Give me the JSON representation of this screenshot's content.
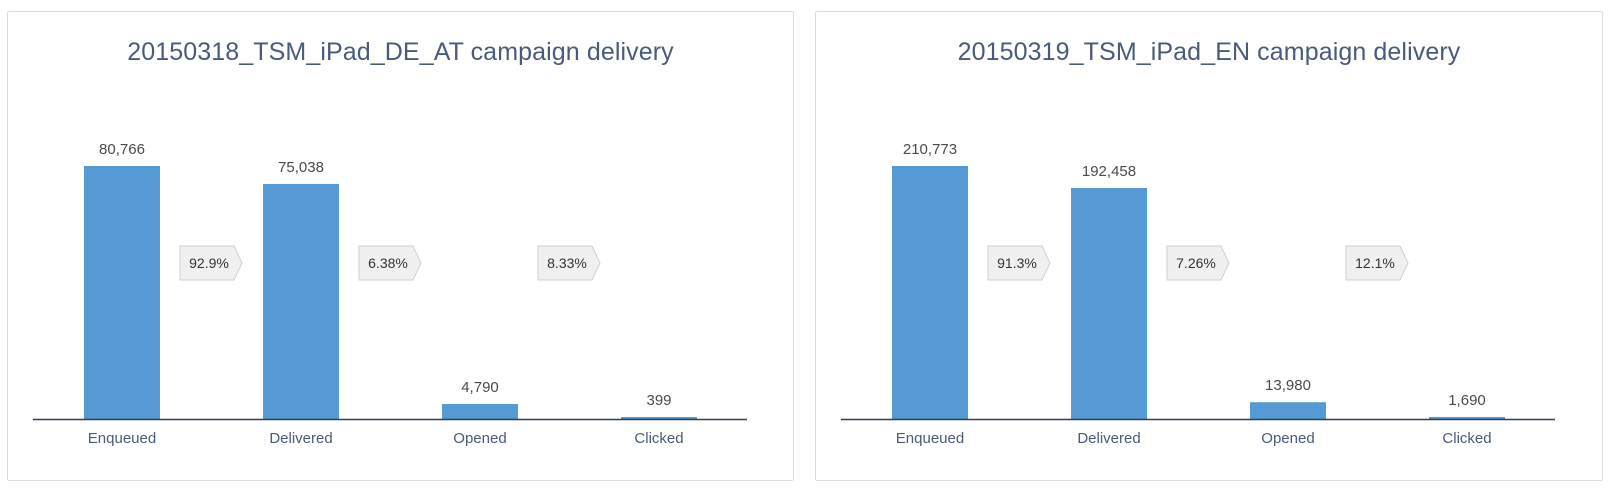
{
  "colors": {
    "bar": "#5599d5",
    "axis": "#2f3f55",
    "rate_fill": "#f0f0f0",
    "rate_stroke": "#cfcfcf"
  },
  "chart_data": [
    {
      "type": "bar",
      "title": "20150318_TSM_iPad_DE_AT campaign delivery",
      "categories": [
        "Enqueued",
        "Delivered",
        "Opened",
        "Clicked"
      ],
      "values": [
        80766,
        75038,
        4790,
        399
      ],
      "value_labels": [
        "80,766",
        "75,038",
        "4,790",
        "399"
      ],
      "conversion_rates": [
        "92.9%",
        "6.38%",
        "8.33%"
      ],
      "ylim": [
        0,
        80766
      ],
      "grid": false,
      "legend": "none"
    },
    {
      "type": "bar",
      "title": "20150319_TSM_iPad_EN campaign delivery",
      "categories": [
        "Enqueued",
        "Delivered",
        "Opened",
        "Clicked"
      ],
      "values": [
        210773,
        192458,
        13980,
        1690
      ],
      "value_labels": [
        "210,773",
        "192,458",
        "13,980",
        "1,690"
      ],
      "conversion_rates": [
        "91.3%",
        "7.26%",
        "12.1%"
      ],
      "ylim": [
        0,
        210773
      ],
      "grid": false,
      "legend": "none"
    }
  ]
}
